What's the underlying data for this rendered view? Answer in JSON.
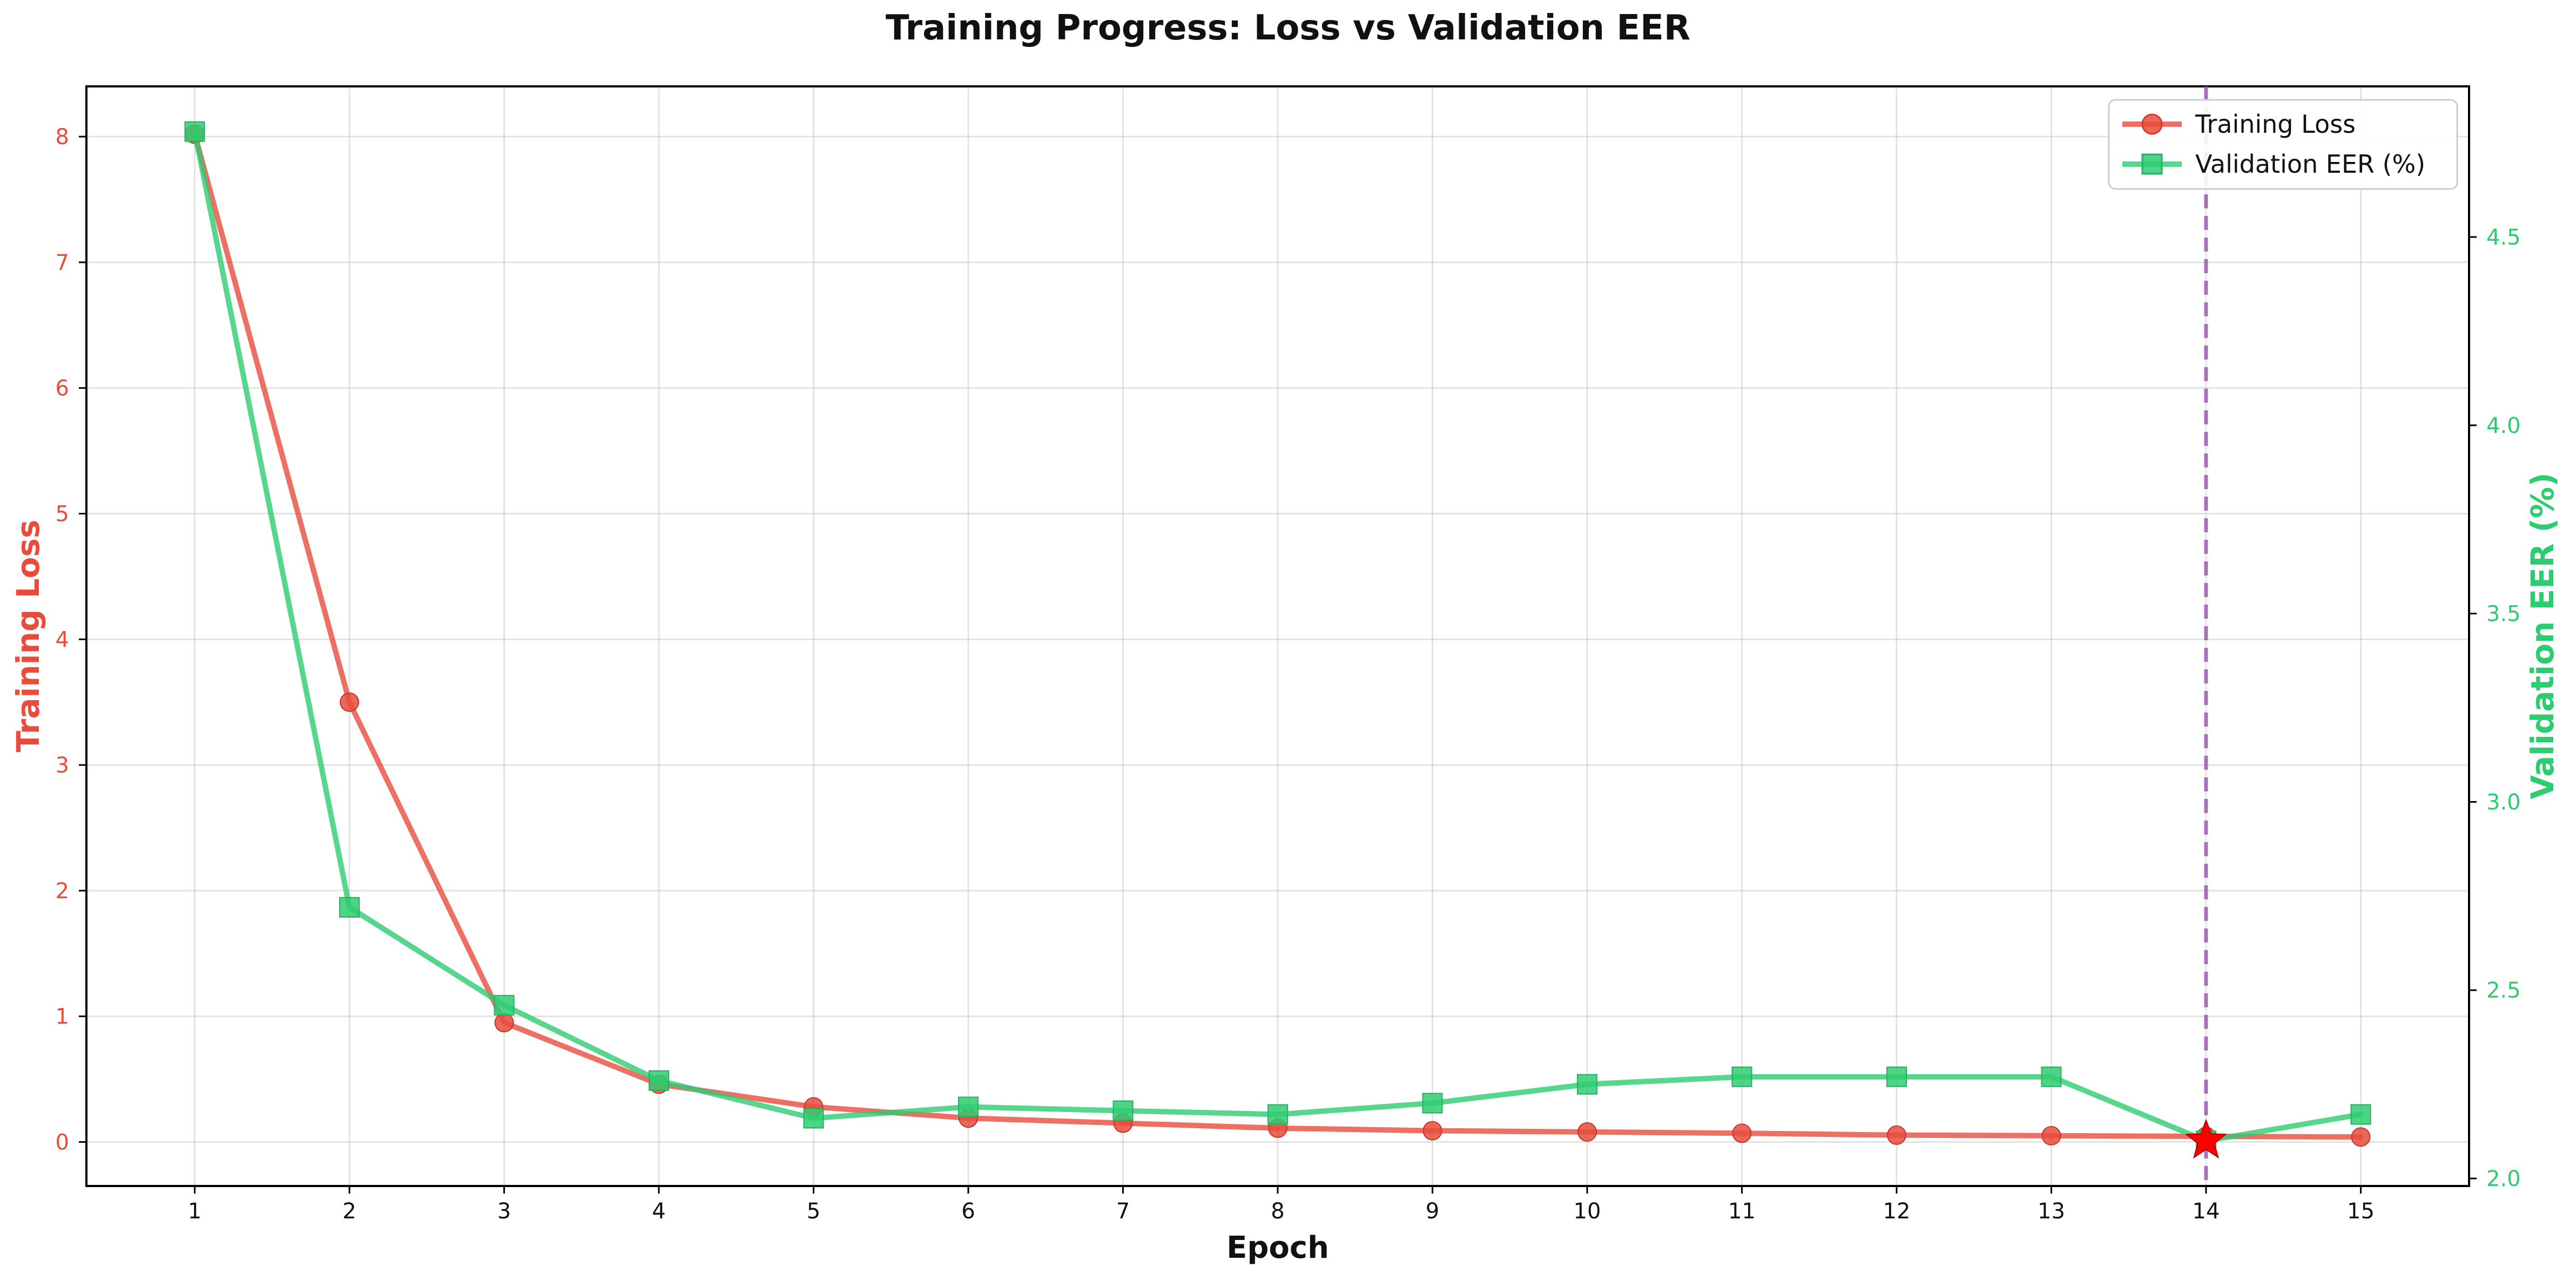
{
  "chart_data": {
    "type": "line",
    "title": "Training Progress: Loss vs Validation EER",
    "xlabel": "Epoch",
    "ylabel_left": "Training Loss",
    "ylabel_right": "Validation EER (%)",
    "x": [
      1,
      2,
      3,
      4,
      5,
      6,
      7,
      8,
      9,
      10,
      11,
      12,
      13,
      14,
      15
    ],
    "xlim": [
      0.3,
      15.7
    ],
    "ylim_left": [
      -0.35,
      8.4
    ],
    "ylim_right": [
      1.98,
      4.9
    ],
    "x_ticks": [
      "1",
      "2",
      "3",
      "4",
      "5",
      "6",
      "7",
      "8",
      "9",
      "10",
      "11",
      "12",
      "13",
      "14",
      "15"
    ],
    "y_ticks_left": [
      "0",
      "1",
      "2",
      "3",
      "4",
      "5",
      "6",
      "7",
      "8"
    ],
    "y_ticks_right": [
      "2.0",
      "2.5",
      "3.0",
      "3.5",
      "4.0",
      "4.5"
    ],
    "grid": true,
    "legend_position": "top-right",
    "series": [
      {
        "name": "Training Loss",
        "axis": "left",
        "color": "#e74c3c",
        "marker": "circle",
        "values": [
          8.02,
          3.5,
          0.95,
          0.46,
          0.28,
          0.19,
          0.15,
          0.11,
          0.09,
          0.08,
          0.07,
          0.055,
          0.05,
          0.045,
          0.04
        ]
      },
      {
        "name": "Validation EER (%)",
        "axis": "right",
        "color": "#2ecc71",
        "marker": "square",
        "values": [
          4.78,
          2.72,
          2.46,
          2.26,
          2.16,
          2.19,
          2.18,
          2.17,
          2.2,
          2.25,
          2.27,
          2.27,
          2.27,
          2.1,
          2.17
        ]
      }
    ],
    "best_epoch": {
      "epoch": 14,
      "value": 2.1,
      "axis": "right",
      "marker": "star",
      "marker_color": "#ff0000",
      "line_color": "#9b59b6",
      "line_style": "dashed"
    },
    "left_axis_color": "#e74c3c",
    "right_axis_color": "#2ecc71"
  }
}
